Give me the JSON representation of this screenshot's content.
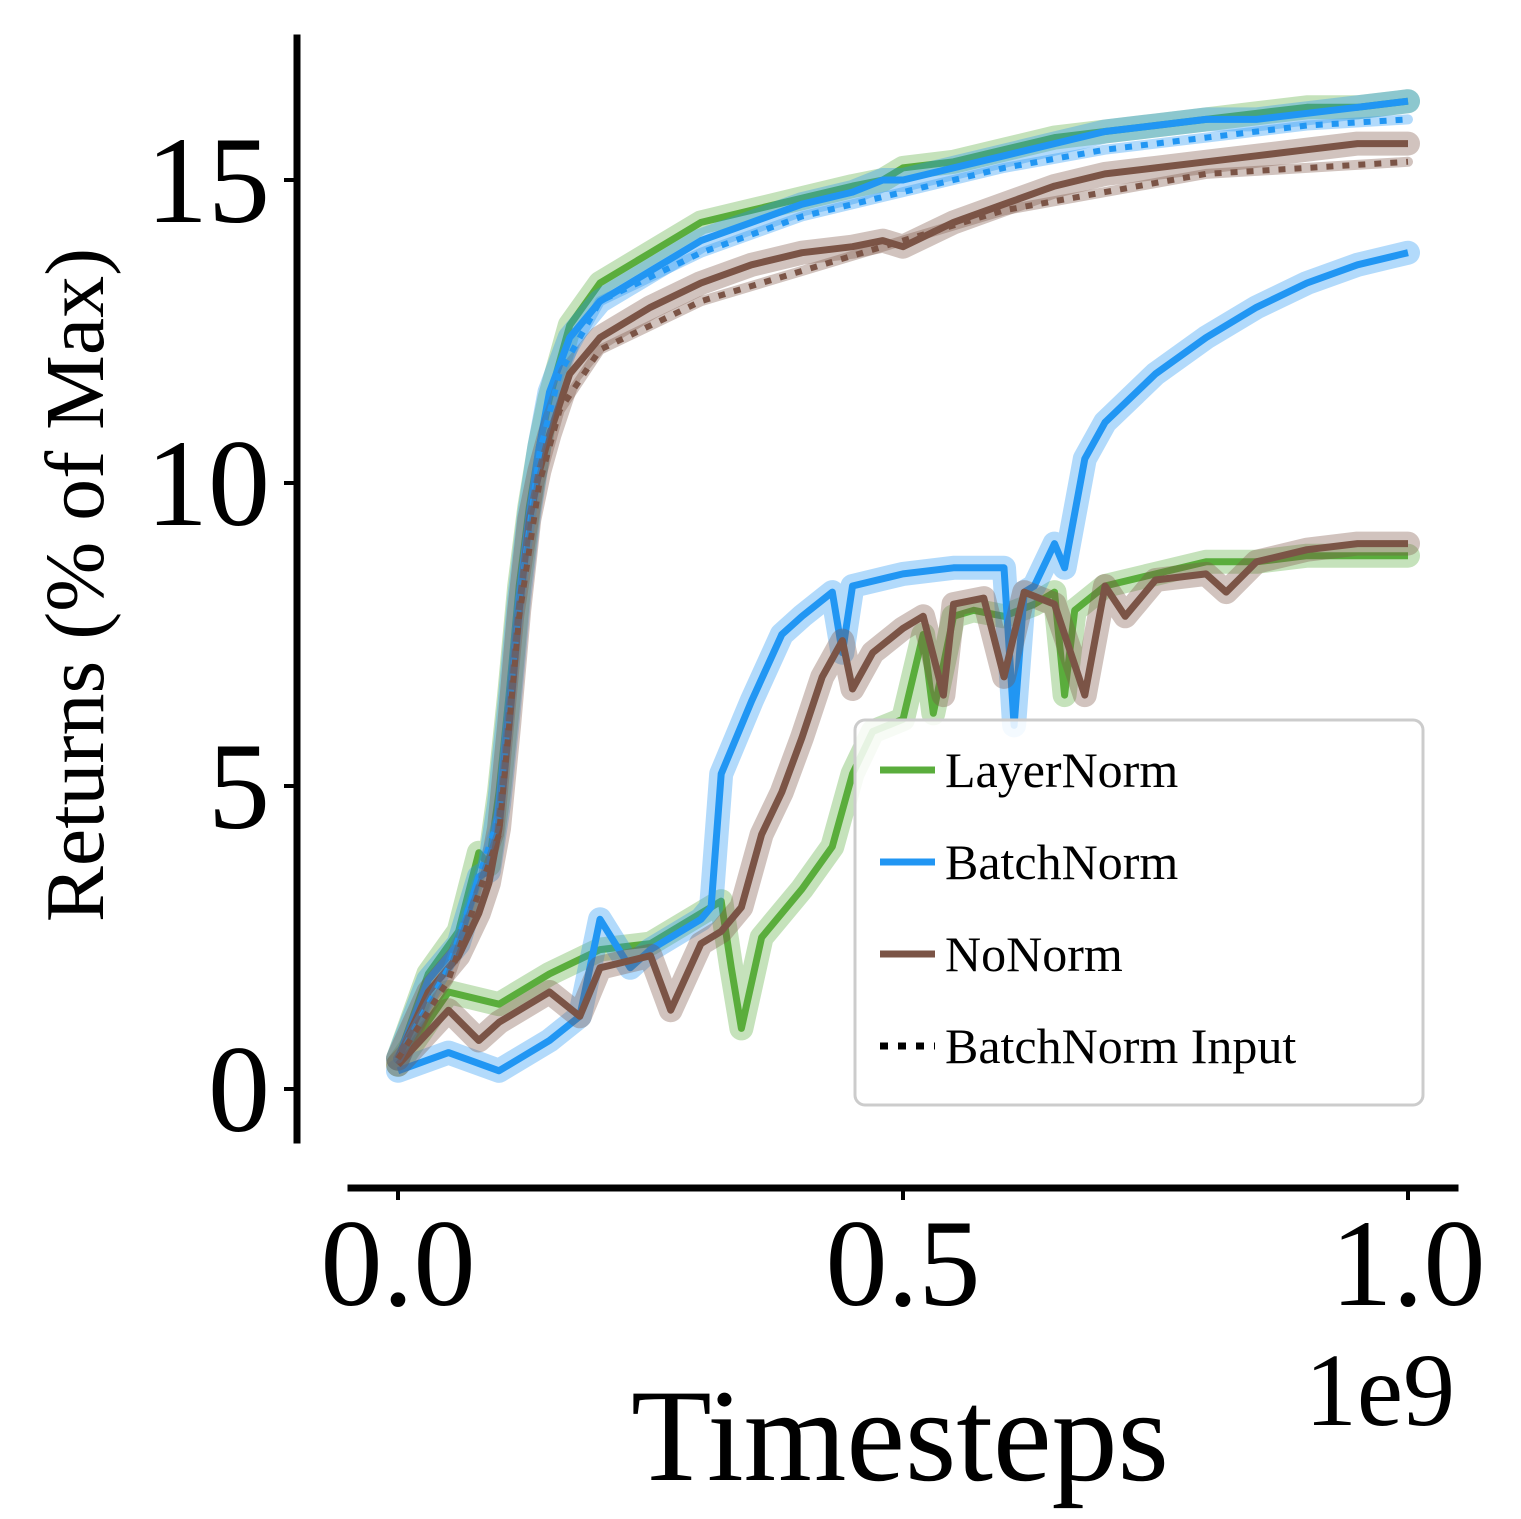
{
  "chart_data": {
    "type": "line",
    "title": "",
    "xlabel": "Timesteps",
    "x_offset_label": "1e9",
    "ylabel": "Returns (% of Max)",
    "xlim": [
      -0.05,
      1.05
    ],
    "ylim": [
      -0.9,
      17.4
    ],
    "xticks": [
      0.0,
      0.5,
      1.0
    ],
    "xtick_labels": [
      "0.0",
      "0.5",
      "1.0"
    ],
    "yticks": [
      0,
      5,
      10,
      15
    ],
    "ytick_labels": [
      "0",
      "5",
      "10",
      "15"
    ],
    "grid": false,
    "legend_position": "lower-right",
    "colors": {
      "LayerNorm": "#5aad3c",
      "BatchNorm": "#2196f3",
      "NoNorm": "#7b5446",
      "BatchNorm Input": "#000000"
    },
    "legend": [
      {
        "label": "LayerNorm",
        "color": "#5aad3c",
        "style": "solid"
      },
      {
        "label": "BatchNorm",
        "color": "#2196f3",
        "style": "solid"
      },
      {
        "label": "NoNorm",
        "color": "#7b5446",
        "style": "solid"
      },
      {
        "label": "BatchNorm Input",
        "color": "#000000",
        "style": "dotted"
      }
    ],
    "series": [
      {
        "name": "LayerNorm",
        "color": "#5aad3c",
        "style": "solid",
        "x": [
          0.0,
          0.03,
          0.06,
          0.08,
          0.09,
          0.1,
          0.11,
          0.12,
          0.13,
          0.14,
          0.15,
          0.17,
          0.2,
          0.25,
          0.3,
          0.35,
          0.4,
          0.45,
          0.48,
          0.5,
          0.55,
          0.6,
          0.65,
          0.7,
          0.75,
          0.8,
          0.85,
          0.9,
          0.95,
          1.0
        ],
        "y": [
          0.5,
          1.9,
          2.6,
          3.9,
          3.7,
          4.9,
          6.5,
          8.3,
          9.6,
          10.6,
          11.4,
          12.6,
          13.3,
          13.8,
          14.3,
          14.5,
          14.7,
          14.9,
          15.0,
          15.2,
          15.3,
          15.5,
          15.7,
          15.8,
          15.9,
          16.0,
          16.1,
          16.2,
          16.2,
          16.3
        ]
      },
      {
        "name": "LayerNorm",
        "color": "#5aad3c",
        "style": "solid",
        "x": [
          0.0,
          0.05,
          0.1,
          0.15,
          0.2,
          0.25,
          0.3,
          0.32,
          0.33,
          0.34,
          0.36,
          0.4,
          0.43,
          0.45,
          0.47,
          0.5,
          0.52,
          0.53,
          0.55,
          0.57,
          0.6,
          0.63,
          0.65,
          0.66,
          0.67,
          0.7,
          0.75,
          0.8,
          0.85,
          0.9,
          0.95,
          1.0
        ],
        "y": [
          0.4,
          1.6,
          1.4,
          1.9,
          2.3,
          2.4,
          2.9,
          3.1,
          2.0,
          1.0,
          2.5,
          3.3,
          4.0,
          5.2,
          5.9,
          6.1,
          7.5,
          6.2,
          7.8,
          7.9,
          7.8,
          8.0,
          8.2,
          6.5,
          7.9,
          8.3,
          8.5,
          8.7,
          8.7,
          8.8,
          8.8,
          8.8
        ]
      },
      {
        "name": "BatchNorm",
        "color": "#2196f3",
        "style": "solid",
        "x": [
          0.0,
          0.03,
          0.06,
          0.08,
          0.09,
          0.1,
          0.11,
          0.12,
          0.13,
          0.14,
          0.15,
          0.17,
          0.2,
          0.25,
          0.3,
          0.35,
          0.4,
          0.45,
          0.48,
          0.5,
          0.55,
          0.6,
          0.65,
          0.7,
          0.75,
          0.8,
          0.85,
          0.9,
          0.95,
          1.0
        ],
        "y": [
          0.5,
          1.8,
          2.4,
          3.5,
          3.6,
          4.7,
          6.3,
          8.1,
          9.5,
          10.6,
          11.5,
          12.4,
          13.0,
          13.5,
          14.0,
          14.3,
          14.6,
          14.8,
          15.0,
          15.0,
          15.2,
          15.4,
          15.6,
          15.8,
          15.9,
          16.0,
          16.0,
          16.1,
          16.2,
          16.3
        ]
      },
      {
        "name": "BatchNorm",
        "color": "#2196f3",
        "style": "solid",
        "x": [
          0.0,
          0.05,
          0.1,
          0.15,
          0.18,
          0.2,
          0.23,
          0.25,
          0.28,
          0.3,
          0.31,
          0.32,
          0.35,
          0.38,
          0.4,
          0.43,
          0.44,
          0.45,
          0.5,
          0.55,
          0.6,
          0.61,
          0.62,
          0.63,
          0.65,
          0.66,
          0.68,
          0.7,
          0.75,
          0.8,
          0.85,
          0.9,
          0.95,
          1.0
        ],
        "y": [
          0.3,
          0.6,
          0.3,
          0.8,
          1.2,
          2.8,
          2.0,
          2.3,
          2.6,
          2.8,
          3.0,
          5.2,
          6.4,
          7.5,
          7.8,
          8.2,
          7.2,
          8.3,
          8.5,
          8.6,
          8.6,
          6.0,
          8.2,
          8.3,
          9.0,
          8.6,
          10.4,
          11.0,
          11.8,
          12.4,
          12.9,
          13.3,
          13.6,
          13.8
        ]
      },
      {
        "name": "NoNorm",
        "color": "#7b5446",
        "style": "solid",
        "x": [
          0.0,
          0.03,
          0.06,
          0.08,
          0.09,
          0.1,
          0.11,
          0.12,
          0.13,
          0.14,
          0.15,
          0.17,
          0.2,
          0.25,
          0.3,
          0.35,
          0.4,
          0.45,
          0.48,
          0.5,
          0.55,
          0.6,
          0.65,
          0.7,
          0.75,
          0.8,
          0.85,
          0.9,
          0.95,
          1.0
        ],
        "y": [
          0.5,
          1.6,
          2.2,
          2.9,
          3.4,
          4.3,
          6.0,
          7.9,
          9.4,
          10.2,
          10.8,
          11.8,
          12.4,
          12.9,
          13.3,
          13.6,
          13.8,
          13.9,
          14.0,
          13.9,
          14.3,
          14.6,
          14.9,
          15.1,
          15.2,
          15.3,
          15.4,
          15.5,
          15.6,
          15.6
        ]
      },
      {
        "name": "NoNorm",
        "color": "#7b5446",
        "style": "solid",
        "x": [
          0.0,
          0.05,
          0.08,
          0.1,
          0.15,
          0.18,
          0.2,
          0.25,
          0.27,
          0.3,
          0.32,
          0.34,
          0.36,
          0.38,
          0.4,
          0.42,
          0.44,
          0.45,
          0.47,
          0.5,
          0.52,
          0.54,
          0.55,
          0.58,
          0.6,
          0.62,
          0.65,
          0.68,
          0.7,
          0.72,
          0.75,
          0.8,
          0.82,
          0.85,
          0.9,
          0.95,
          1.0
        ],
        "y": [
          0.4,
          1.3,
          0.8,
          1.1,
          1.6,
          1.2,
          2.0,
          2.2,
          1.3,
          2.4,
          2.6,
          3.0,
          4.2,
          4.9,
          5.8,
          6.8,
          7.4,
          6.6,
          7.2,
          7.6,
          7.8,
          6.5,
          8.0,
          8.1,
          6.8,
          8.2,
          8.0,
          6.5,
          8.3,
          7.8,
          8.4,
          8.5,
          8.2,
          8.7,
          8.9,
          9.0,
          9.0
        ]
      },
      {
        "name": "BatchNorm Input",
        "color": "#2196f3",
        "style": "dotted",
        "x": [
          0.0,
          0.05,
          0.1,
          0.12,
          0.14,
          0.16,
          0.2,
          0.3,
          0.4,
          0.5,
          0.6,
          0.7,
          0.8,
          0.9,
          1.0
        ],
        "y": [
          0.5,
          2.0,
          4.5,
          8.0,
          10.5,
          11.8,
          13.0,
          13.8,
          14.4,
          14.8,
          15.2,
          15.5,
          15.7,
          15.9,
          16.0
        ]
      },
      {
        "name": "BatchNorm Input",
        "color": "#7b5446",
        "style": "dotted",
        "x": [
          0.0,
          0.05,
          0.1,
          0.12,
          0.14,
          0.16,
          0.2,
          0.3,
          0.4,
          0.5,
          0.6,
          0.7,
          0.8,
          0.9,
          1.0
        ],
        "y": [
          0.5,
          1.8,
          4.2,
          7.8,
          10.0,
          11.2,
          12.2,
          13.0,
          13.5,
          14.0,
          14.5,
          14.8,
          15.1,
          15.2,
          15.3
        ]
      }
    ]
  }
}
